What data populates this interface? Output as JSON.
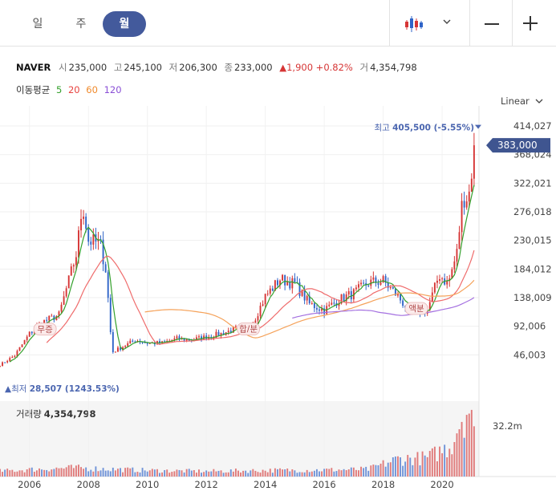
{
  "tabs": [
    {
      "label": "일",
      "active": false
    },
    {
      "label": "주",
      "active": false
    },
    {
      "label": "월",
      "active": true
    }
  ],
  "toolbar": {
    "chart_type_icon": "candlestick-icon",
    "dropdown_icon": "chevron-down-icon",
    "zoom_out_icon": "minus-icon",
    "zoom_in_icon": "plus-icon"
  },
  "quote": {
    "name": "NAVER",
    "open_label": "시",
    "open": "235,000",
    "high_label": "고",
    "high": "245,100",
    "low_label": "저",
    "low": "206,300",
    "close_label": "종",
    "close": "233,000",
    "change": "▲1,900 +0.82%",
    "volume_label": "거",
    "volume": "4,354,798"
  },
  "moving_average": {
    "label": "이동평균",
    "periods": [
      {
        "label": "5",
        "color": "#33a02c"
      },
      {
        "label": "20",
        "color": "#e8423f"
      },
      {
        "label": "60",
        "color": "#f08a2c"
      },
      {
        "label": "120",
        "color": "#8a4fd6"
      }
    ]
  },
  "scale_label": "Linear",
  "colors": {
    "up": "#d63535",
    "down": "#2f64c8",
    "accent": "#435a9c",
    "ma5": "#33a02c",
    "ma20": "#ef6c6c",
    "ma60": "#f5a25a",
    "ma120": "#a470e0"
  },
  "chart_data": {
    "type": "candlestick",
    "period": "monthly",
    "x_tick_labels": [
      "2006",
      "2008",
      "2010",
      "2012",
      "2014",
      "2016",
      "2018",
      "2020"
    ],
    "y_tick_labels": [
      "414,027",
      "368,024",
      "322,021",
      "276,018",
      "230,015",
      "184,012",
      "138,009",
      "92,006",
      "46,003"
    ],
    "ylim": [
      0,
      436000
    ],
    "scale": "Linear",
    "current_price": {
      "label": "383,000",
      "value": 383000
    },
    "high_marker": {
      "label": "최고",
      "text": "405,500 (-5.55%)",
      "value": 405500
    },
    "low_marker": {
      "label": "최저",
      "text": "28,507 (1243.53%)",
      "value": 28507
    },
    "event_tags": [
      {
        "label": "무증",
        "x": 2006.2
      },
      {
        "label": "합/분",
        "x": 2013.1
      },
      {
        "label": "액분",
        "x": 2018.8
      }
    ],
    "price_path": [
      [
        2005.0,
        30000
      ],
      [
        2005.5,
        45000
      ],
      [
        2006.0,
        80000
      ],
      [
        2006.5,
        100000
      ],
      [
        2007.0,
        110000
      ],
      [
        2007.3,
        160000
      ],
      [
        2007.6,
        210000
      ],
      [
        2007.8,
        290000
      ],
      [
        2008.0,
        230000
      ],
      [
        2008.4,
        225000
      ],
      [
        2008.6,
        180000
      ],
      [
        2008.8,
        50000
      ],
      [
        2009.2,
        60000
      ],
      [
        2009.6,
        70000
      ],
      [
        2010.0,
        65000
      ],
      [
        2010.5,
        65000
      ],
      [
        2011.0,
        72000
      ],
      [
        2011.5,
        70000
      ],
      [
        2012.0,
        75000
      ],
      [
        2012.5,
        80000
      ],
      [
        2013.0,
        88000
      ],
      [
        2013.5,
        90000
      ],
      [
        2014.0,
        140000
      ],
      [
        2014.5,
        168000
      ],
      [
        2015.0,
        160000
      ],
      [
        2015.5,
        128000
      ],
      [
        2016.0,
        118000
      ],
      [
        2016.5,
        135000
      ],
      [
        2017.0,
        145000
      ],
      [
        2017.5,
        162000
      ],
      [
        2018.0,
        165000
      ],
      [
        2018.5,
        140000
      ],
      [
        2018.9,
        115000
      ],
      [
        2019.5,
        118000
      ],
      [
        2019.9,
        175000
      ],
      [
        2020.2,
        160000
      ],
      [
        2020.5,
        210000
      ],
      [
        2020.7,
        300000
      ],
      [
        2020.9,
        300000
      ],
      [
        2021.1,
        383000
      ]
    ],
    "volume_label": "거래량",
    "volume_value": "4,354,798",
    "volume_tick": "32.2m",
    "volume_max": 32200000,
    "volume_path": [
      [
        2005.0,
        2.5
      ],
      [
        2006.5,
        3.5
      ],
      [
        2007.5,
        4.0
      ],
      [
        2008.5,
        3.5
      ],
      [
        2010.0,
        2.8
      ],
      [
        2012.0,
        2.4
      ],
      [
        2014.0,
        2.8
      ],
      [
        2016.0,
        3.0
      ],
      [
        2017.5,
        3.3
      ],
      [
        2018.5,
        8.0
      ],
      [
        2019.5,
        8.5
      ],
      [
        2020.3,
        14.0
      ],
      [
        2020.6,
        26.0
      ],
      [
        2020.9,
        32.0
      ],
      [
        2021.1,
        17.0
      ]
    ]
  }
}
